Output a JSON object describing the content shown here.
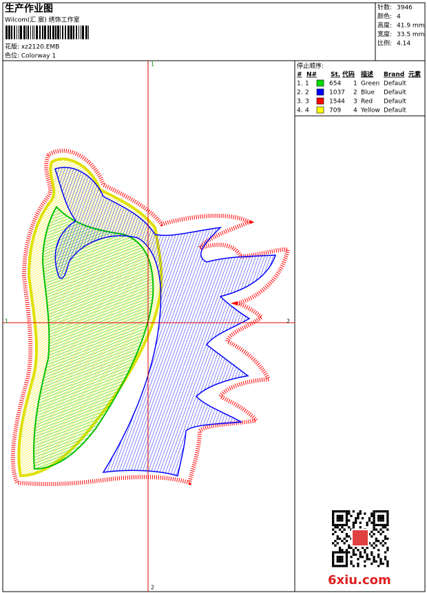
{
  "header": {
    "title": "生产作业图",
    "studio": "Wilcom(汇 宸) 绣饰工作室",
    "design": "花版: xz2120.EMB",
    "colorway": "色位: Colorway 1"
  },
  "info": [
    {
      "label": "针数:",
      "value": "3946"
    },
    {
      "label": "颜色:",
      "value": "4"
    },
    {
      "label": "高度:",
      "value": "41.9 mm"
    },
    {
      "label": "宽度:",
      "value": "33.5 mm"
    },
    {
      "label": "比例:",
      "value": "4.14"
    }
  ],
  "stop_sequence": {
    "title": "停止顺序:",
    "columns": [
      "#",
      "N#",
      "St.",
      "代码",
      "描述",
      "Brand",
      "元素"
    ],
    "rows": [
      {
        "index": "1.",
        "n": "1",
        "color": "#00dd00",
        "stitches": "654",
        "code": "1",
        "description": "Green",
        "brand": "Default"
      },
      {
        "index": "2.",
        "n": "2",
        "color": "#0000ff",
        "stitches": "1037",
        "code": "2",
        "description": "Blue",
        "brand": "Default"
      },
      {
        "index": "3.",
        "n": "3",
        "color": "#ff0000",
        "stitches": "1544",
        "code": "3",
        "description": "Red",
        "brand": "Default"
      },
      {
        "index": "4.",
        "n": "4",
        "color": "#ffff00",
        "stitches": "709",
        "code": "4",
        "description": "Yellow",
        "brand": "Default"
      }
    ]
  },
  "axes": {
    "top": "1",
    "bottom": "2",
    "left": "1",
    "right": "2"
  },
  "watermark": "6xiu.com"
}
